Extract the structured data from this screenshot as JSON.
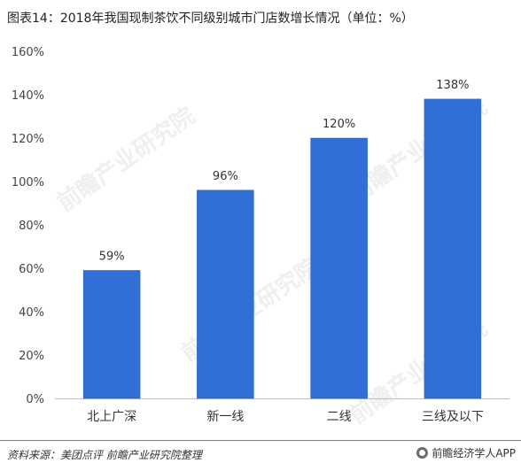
{
  "title": "图表14：2018年我国现制茶饮不同级别城市门店数增长情况（单位：%）",
  "chart_data": {
    "type": "bar",
    "categories": [
      "北上广深",
      "新一线",
      "二线",
      "三线及以下"
    ],
    "values": [
      59,
      96,
      120,
      138
    ],
    "value_labels": [
      "59%",
      "96%",
      "120%",
      "138%"
    ],
    "ylim": [
      0,
      160
    ],
    "yticks": [
      0,
      20,
      40,
      60,
      80,
      100,
      120,
      140,
      160
    ],
    "ytick_labels": [
      "0%",
      "20%",
      "40%",
      "60%",
      "80%",
      "100%",
      "120%",
      "140%",
      "160%"
    ],
    "bar_color": "#2f6fd6",
    "grid": false,
    "legend": "none"
  },
  "source": "资料来源：美团点评 前瞻产业研究院整理",
  "brand": "前瞻经济学人APP",
  "watermark": "前瞻产业研究院"
}
